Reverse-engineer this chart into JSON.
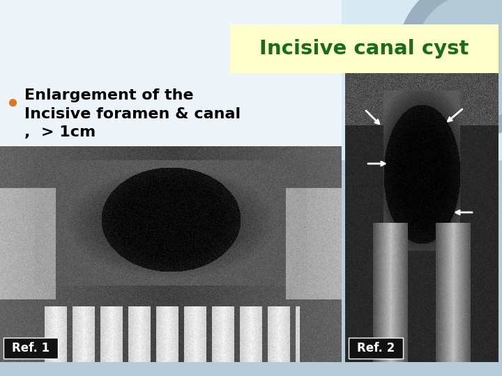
{
  "title": "Incisive canal cyst",
  "title_color": "#1a6b1a",
  "title_bg": "#ffffcc",
  "bullet_text_line1": "Enlargement of the",
  "bullet_text_line2": "Incisive foramen & canal",
  "bullet_text_line3": ",  > 1cm",
  "bullet_color": "#e07820",
  "text_color": "#000000",
  "ref1_label": "Ref. 1",
  "ref2_label": "Ref. 2",
  "background_color": "#b8ccd8"
}
